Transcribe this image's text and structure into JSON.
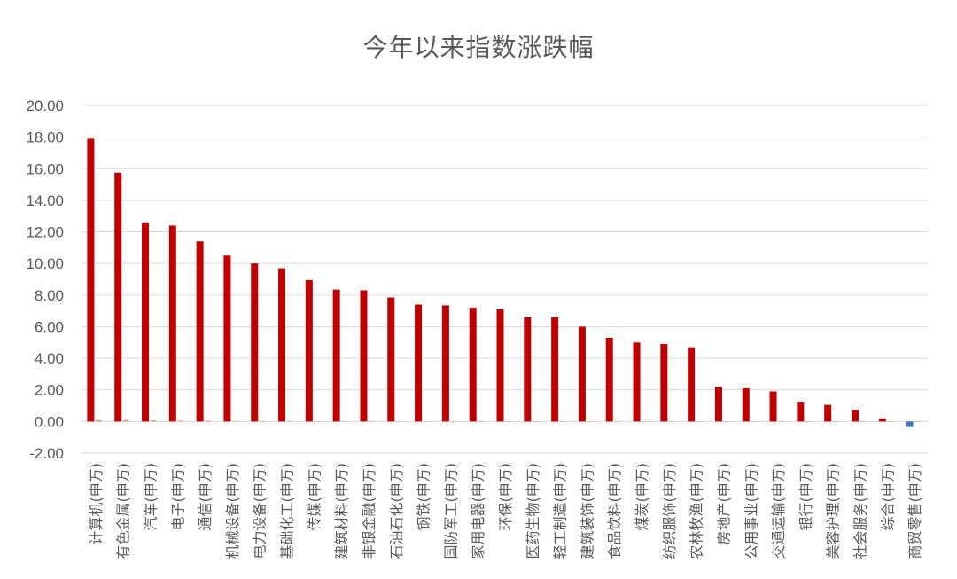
{
  "chart_data": {
    "type": "bar",
    "title": "今年以来指数涨跌幅",
    "xlabel": "",
    "ylabel": "",
    "ylim": [
      -2,
      20
    ],
    "y_ticks": [
      "20.00",
      "18.00",
      "16.00",
      "14.00",
      "12.00",
      "10.00",
      "8.00",
      "6.00",
      "4.00",
      "2.00",
      "0.00",
      "-2.00"
    ],
    "grid": true,
    "legend": "none",
    "categories": [
      "计算机(申万)",
      "有色金属(申万)",
      "汽车(申万)",
      "电子(申万)",
      "通信(申万)",
      "机械设备(申万)",
      "电力设备(申万)",
      "基础化工(申万)",
      "传媒(申万)",
      "建筑材料(申万)",
      "非银金融(申万)",
      "石油石化(申万)",
      "钢铁(申万)",
      "国防军工(申万)",
      "家用电器(申万)",
      "环保(申万)",
      "医药生物(申万)",
      "轻工制造(申万)",
      "建筑装饰(申万)",
      "食品饮料(申万)",
      "煤炭(申万)",
      "纺织服饰(申万)",
      "农林牧渔(申万)",
      "房地产(申万)",
      "公用事业(申万)",
      "交通运输(申万)",
      "银行(申万)",
      "美容护理(申万)",
      "社会服务(申万)",
      "综合(申万)",
      "商贸零售(申万)"
    ],
    "series": [
      {
        "values": [
          17.9,
          15.75,
          12.6,
          12.4,
          11.4,
          10.5,
          10.0,
          9.7,
          8.95,
          8.35,
          8.3,
          7.85,
          7.4,
          7.35,
          7.2,
          7.1,
          6.6,
          6.6,
          6.0,
          5.3,
          5.0,
          4.9,
          4.7,
          2.2,
          2.1,
          1.9,
          1.25,
          1.05,
          0.75,
          0.2,
          -0.35
        ],
        "color_positive": "#c00000",
        "color_negative": "#4472c4"
      },
      {
        "values": [
          0.1,
          0.1,
          0.08,
          0.05,
          0.05,
          0.03,
          0.03,
          0.03,
          0.02,
          0.02,
          0.02,
          0.02,
          0.02,
          0.02,
          0.02,
          0.02,
          0.02,
          0.02,
          0.01,
          0.01,
          0.01,
          0.01,
          0.01,
          0.01,
          0.01,
          0.01,
          0.01,
          0.01,
          0.01,
          0.01,
          0.01
        ],
        "color_positive": "#ed7d31",
        "color_negative": "#ed7d31"
      }
    ]
  }
}
